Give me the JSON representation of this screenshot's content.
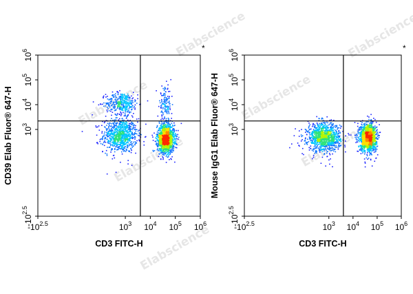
{
  "watermark": "Elabscience",
  "colors": {
    "density": [
      "#1a22ff",
      "#0f74ff",
      "#00c6ff",
      "#2de27a",
      "#b5f500",
      "#ffe000",
      "#ff8a00",
      "#ff2a00"
    ],
    "gate": "#000000",
    "frame": "#000000"
  },
  "chart_data": [
    {
      "type": "scatter",
      "subtype": "flow-cytometry-density",
      "xlabel": "CD3 FITC-H",
      "ylabel": "CD39 Elab Fluor® 647-H",
      "corner_mark": "*",
      "scale": "biexponential",
      "xlim": [
        -316,
        1000000
      ],
      "ylim": [
        -316,
        1000000
      ],
      "x_ticks": [
        {
          "label": "-10",
          "sup": "2.5",
          "value": -316
        },
        {
          "label": "10",
          "sup": "3",
          "value": 1000
        },
        {
          "label": "10",
          "sup": "4",
          "value": 10000
        },
        {
          "label": "10",
          "sup": "5",
          "value": 100000
        },
        {
          "label": "10",
          "sup": "6",
          "value": 1000000
        }
      ],
      "y_ticks": [
        {
          "label": "-10",
          "sup": "2.5",
          "value": -316
        },
        {
          "label": "10",
          "sup": "3",
          "value": 1000
        },
        {
          "label": "10",
          "sup": "4",
          "value": 10000
        },
        {
          "label": "10",
          "sup": "5",
          "value": 100000
        },
        {
          "label": "10",
          "sup": "6",
          "value": 1000000
        }
      ],
      "gate": {
        "x": 4000,
        "y": 2200
      },
      "populations": [
        {
          "x": 600,
          "y": 600,
          "spread_x": 0.34,
          "spread_y": 0.34,
          "count": 900
        },
        {
          "x": 700,
          "y": 12000,
          "spread_x": 0.32,
          "spread_y": 0.22,
          "count": 380
        },
        {
          "x": 40000,
          "y": 450,
          "spread_x": 0.17,
          "spread_y": 0.28,
          "count": 1500
        },
        {
          "x": 38000,
          "y": 9000,
          "spread_x": 0.12,
          "spread_y": 0.38,
          "count": 150
        }
      ]
    },
    {
      "type": "scatter",
      "subtype": "flow-cytometry-density",
      "xlabel": "CD3 FITC-H",
      "ylabel": "Mouse IgG1 Elab Fluor® 647-H",
      "corner_mark": "*",
      "scale": "biexponential",
      "xlim": [
        -316,
        1000000
      ],
      "ylim": [
        -316,
        1000000
      ],
      "x_ticks": [
        {
          "label": "-10",
          "sup": "2.5",
          "value": -316
        },
        {
          "label": "10",
          "sup": "3",
          "value": 1000
        },
        {
          "label": "10",
          "sup": "4",
          "value": 10000
        },
        {
          "label": "10",
          "sup": "5",
          "value": 100000
        },
        {
          "label": "10",
          "sup": "6",
          "value": 1000000
        }
      ],
      "y_ticks": [
        {
          "label": "-10",
          "sup": "2.5",
          "value": -316
        },
        {
          "label": "10",
          "sup": "3",
          "value": 1000
        },
        {
          "label": "10",
          "sup": "4",
          "value": 10000
        },
        {
          "label": "10",
          "sup": "5",
          "value": 100000
        },
        {
          "label": "10",
          "sup": "6",
          "value": 1000000
        }
      ],
      "gate": {
        "x": 4000,
        "y": 2200
      },
      "populations": [
        {
          "x": 600,
          "y": 500,
          "spread_x": 0.34,
          "spread_y": 0.28,
          "count": 1100
        },
        {
          "x": 40000,
          "y": 500,
          "spread_x": 0.17,
          "spread_y": 0.28,
          "count": 1500
        }
      ]
    }
  ]
}
